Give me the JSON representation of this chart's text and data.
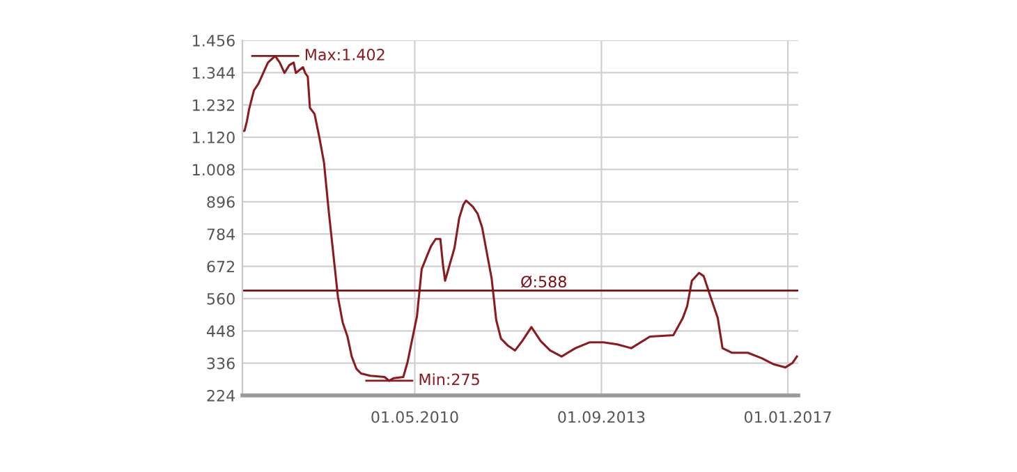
{
  "chart_data": {
    "type": "line",
    "series": [
      {
        "color": "#8b1a1f",
        "x": [
          "2007-04-01",
          "2007-04-15",
          "2007-05-01",
          "2007-05-15",
          "2007-06-15",
          "2007-07-15",
          "2007-08-15",
          "2007-09-15",
          "2007-11-01",
          "2007-12-01",
          "2008-01-01",
          "2008-02-01",
          "2008-03-01",
          "2008-03-15",
          "2008-05-01",
          "2008-05-15",
          "2008-06-01",
          "2008-06-15",
          "2008-07-15",
          "2008-08-15",
          "2008-09-15",
          "2008-10-15",
          "2008-11-15",
          "2008-12-15",
          "2009-01-15",
          "2009-02-15",
          "2009-03-15",
          "2009-04-15",
          "2009-05-15",
          "2009-07-15",
          "2009-10-15",
          "2009-11-15",
          "2009-12-15",
          "2010-02-15",
          "2010-03-15",
          "2010-04-15",
          "2010-05-15",
          "2010-06-15",
          "2010-07-15",
          "2010-08-15",
          "2010-09-15",
          "2010-10-15",
          "2010-11-01",
          "2010-11-15",
          "2010-12-15",
          "2011-01-15",
          "2011-02-15",
          "2011-03-15",
          "2011-04-01",
          "2011-05-15",
          "2011-06-15",
          "2011-07-15",
          "2011-08-15",
          "2011-09-15",
          "2011-10-15",
          "2011-11-15",
          "2012-01-01",
          "2012-02-15",
          "2012-04-01",
          "2012-06-01",
          "2012-08-01",
          "2012-10-01",
          "2012-12-15",
          "2013-03-15",
          "2013-06-15",
          "2013-09-15",
          "2013-12-15",
          "2014-03-15",
          "2014-07-15",
          "2014-12-15",
          "2015-02-15",
          "2015-03-15",
          "2015-04-15",
          "2015-06-01",
          "2015-07-01",
          "2015-08-15",
          "2015-10-01",
          "2015-11-01",
          "2016-01-01",
          "2016-04-15",
          "2016-07-15",
          "2016-10-01",
          "2016-12-15",
          "2017-02-01",
          "2017-03-01"
        ],
        "values": [
          1142,
          1142,
          1177,
          1218,
          1282,
          1306,
          1343,
          1379,
          1402,
          1379,
          1343,
          1370,
          1379,
          1343,
          1363,
          1343,
          1330,
          1222,
          1201,
          1121,
          1032,
          868,
          714,
          566,
          477,
          429,
          359,
          316,
          300,
          292,
          288,
          275,
          284,
          288,
          340,
          421,
          498,
          662,
          702,
          742,
          767,
          767,
          678,
          622,
          678,
          735,
          839,
          887,
          900,
          879,
          855,
          807,
          718,
          630,
          485,
          421,
          396,
          380,
          412,
          461,
          412,
          380,
          359,
          388,
          408,
          408,
          401,
          388,
          428,
          433,
          493,
          533,
          622,
          649,
          638,
          566,
          493,
          388,
          372,
          372,
          353,
          332,
          321,
          337,
          359
        ]
      }
    ],
    "xlim": [
      "2007-04-01",
      "2017-03-10"
    ],
    "xticks": [
      {
        "value": "2010-05-01",
        "label": "01.05.2010"
      },
      {
        "value": "2013-09-01",
        "label": "01.09.2013"
      },
      {
        "value": "2017-01-01",
        "label": "01.01.2017"
      }
    ],
    "ylim": [
      224,
      1456
    ],
    "yticks": [
      {
        "value": 224,
        "label": "224"
      },
      {
        "value": 336,
        "label": "336"
      },
      {
        "value": 448,
        "label": "448"
      },
      {
        "value": 560,
        "label": "560"
      },
      {
        "value": 672,
        "label": "672"
      },
      {
        "value": 784,
        "label": "784"
      },
      {
        "value": 896,
        "label": "896"
      },
      {
        "value": 1008,
        "label": "1.008"
      },
      {
        "value": 1120,
        "label": "1.120"
      },
      {
        "value": 1232,
        "label": "1.232"
      },
      {
        "value": 1344,
        "label": "1.344"
      },
      {
        "value": 1456,
        "label": "1.456"
      }
    ],
    "grid": true,
    "ref_lines": [
      {
        "axis": "y",
        "value": 588,
        "label": "Ø:588",
        "color": "#7a1014"
      }
    ],
    "annotations": [
      {
        "text": "Max:1.402",
        "x": "2007-11-01",
        "y": 1402
      },
      {
        "text": "Min:275",
        "x": "2009-11-15",
        "y": 275
      }
    ]
  }
}
